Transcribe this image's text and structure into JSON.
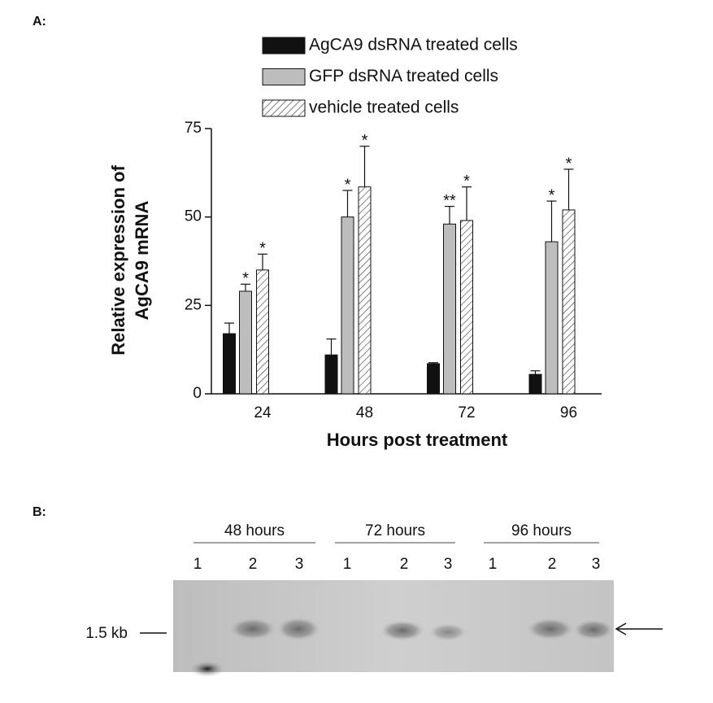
{
  "panel_labels": [
    "A:",
    "B:"
  ],
  "chart_data": {
    "type": "bar",
    "ylabel": [
      "Relative expression of",
      "AgCA9 mRNA"
    ],
    "xlabel": "Hours post treatment",
    "categories": [
      "24",
      "48",
      "72",
      "96"
    ],
    "ylim": [
      0,
      75
    ],
    "yticks": [
      0,
      25,
      50,
      75
    ],
    "series": [
      {
        "name": "AgCA9 dsRNA treated cells",
        "color": "#111111",
        "values": [
          17,
          11,
          8.5,
          5.5
        ],
        "errors": [
          3,
          4.5,
          0.3,
          1
        ],
        "significance": [
          null,
          null,
          null,
          null
        ]
      },
      {
        "name": "GFP dsRNA treated cells",
        "color": "#bdbdbd",
        "values": [
          29,
          50,
          48,
          43
        ],
        "errors": [
          2,
          7.5,
          5,
          11.5
        ],
        "significance": [
          "*",
          "*",
          "**",
          "*"
        ]
      },
      {
        "name": "vehicle treated cells",
        "color": "#ffffff",
        "pattern": "hatch",
        "values": [
          35,
          58.5,
          49,
          52
        ],
        "errors": [
          4.5,
          11.5,
          9.5,
          11.5
        ],
        "significance": [
          "*",
          "*",
          "*",
          "*"
        ]
      }
    ]
  },
  "blot": {
    "groups": [
      {
        "label": "48 hours",
        "lanes": [
          "1",
          "2",
          "3"
        ]
      },
      {
        "label": "72 hours",
        "lanes": [
          "1",
          "2",
          "3"
        ]
      },
      {
        "label": "96 hours",
        "lanes": [
          "1",
          "2",
          "3"
        ]
      }
    ],
    "marker": "1.5 kb"
  }
}
